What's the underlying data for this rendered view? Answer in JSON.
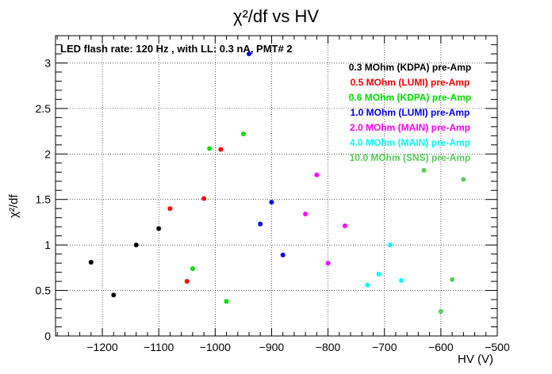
{
  "chart_data": {
    "type": "scatter",
    "title": "χ²/df vs HV",
    "annotation": "LED flash rate: 120 Hz , with LL: 0.3 nA, PMT# 2",
    "xlabel": "HV (V)",
    "ylabel": "χ²/df",
    "xlim": [
      -1283,
      -500
    ],
    "ylim": [
      0,
      3.3
    ],
    "x_ticks": [
      -1200,
      -1100,
      -1000,
      -900,
      -800,
      -700,
      -600,
      -500
    ],
    "y_ticks": [
      0,
      0.5,
      1,
      1.5,
      2,
      2.5,
      3
    ],
    "x_tick_labels": [
      "−1200",
      "−1100",
      "−1000",
      "−900",
      "−800",
      "−700",
      "−600",
      "−500"
    ],
    "y_tick_labels": [
      "0",
      "0.5",
      "1",
      "1.5",
      "2",
      "2.5",
      "3"
    ],
    "grid": true,
    "legend_position": "top-right",
    "series": [
      {
        "name": "0.3 MOhm (KDPA) pre-Amp",
        "color": "#000000",
        "points": [
          [
            -1220,
            0.81
          ],
          [
            -1180,
            0.45
          ],
          [
            -1140,
            1.0
          ],
          [
            -1100,
            1.18
          ]
        ]
      },
      {
        "name": "0.5 MOhm (LUMI) pre-Amp",
        "color": "#ff0000",
        "points": [
          [
            -1080,
            1.4
          ],
          [
            -1050,
            0.6
          ],
          [
            -1020,
            1.51
          ],
          [
            -990,
            2.05
          ]
        ]
      },
      {
        "name": "0.6 MOhm (KDPA) pre-Amp",
        "color": "#00dd00",
        "points": [
          [
            -1040,
            0.74
          ],
          [
            -1010,
            2.06
          ],
          [
            -980,
            0.38
          ],
          [
            -950,
            2.22
          ]
        ]
      },
      {
        "name": "1.0 MOhm (LUMI) pre-Amp",
        "color": "#0000ee",
        "points": [
          [
            -940,
            3.1
          ],
          [
            -920,
            1.23
          ],
          [
            -900,
            1.47
          ],
          [
            -880,
            0.89
          ]
        ]
      },
      {
        "name": "2.0 MOhm (MAIN) pre-Amp",
        "color": "#ff00ff",
        "points": [
          [
            -840,
            1.34
          ],
          [
            -820,
            1.77
          ],
          [
            -800,
            0.8
          ],
          [
            -770,
            1.21
          ]
        ]
      },
      {
        "name": "4.0 MOhm (MAIN) pre-Amp",
        "color": "#00ffff",
        "points": [
          [
            -730,
            0.56
          ],
          [
            -710,
            0.68
          ],
          [
            -690,
            1.0
          ],
          [
            -670,
            0.61
          ]
        ]
      },
      {
        "name": "10.0 MOhm (SNS) pre-Amp",
        "color": "#55cc55",
        "points": [
          [
            -630,
            1.82
          ],
          [
            -600,
            0.27
          ],
          [
            -580,
            0.62
          ],
          [
            -560,
            1.72
          ]
        ]
      }
    ]
  }
}
